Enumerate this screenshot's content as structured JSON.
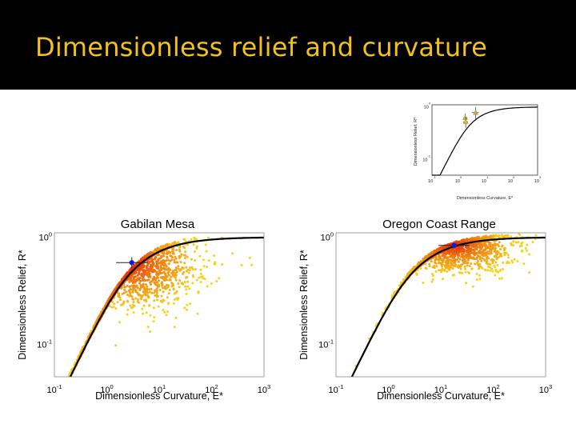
{
  "slide": {
    "title": "Dimensionless relief and curvature"
  },
  "chart_data": [
    {
      "type": "scatter",
      "title": "Gabilan Mesa",
      "xlabel": "Dimensionless Curvature, E*",
      "ylabel": "Dimensionless Relief, R*",
      "x_scale": "log",
      "y_scale": "log",
      "xlim": [
        0.1,
        1000
      ],
      "ylim": [
        0.05,
        1.1
      ],
      "x_ticks": [
        0.1,
        1,
        10,
        100,
        1000
      ],
      "y_ticks": [
        0.1,
        1
      ],
      "curve": "R* = (1/E*)(sqrt(1+E*^2) - ln((1+sqrt(1+E*^2))/2) - 1)",
      "cloud": {
        "center_E": 3,
        "center_R": 0.58,
        "spread_logE": 0.6,
        "spread_logR": 0.2,
        "n_points": 1800
      },
      "mean_point": {
        "E": 3.0,
        "R": 0.58,
        "xerr_log": 0.3,
        "yerr_log": 0.05
      },
      "colors": {
        "curve": "#000000",
        "mean": "#1020d0",
        "cloud_dense": "#e52a08",
        "cloud_mid": "#f08a12",
        "cloud_sparse": "#f5d21e"
      }
    },
    {
      "type": "scatter",
      "title": "Oregon Coast Range",
      "xlabel": "Dimensionless Curvature, E*",
      "ylabel": "Dimensionless Relief, R*",
      "x_scale": "log",
      "y_scale": "log",
      "xlim": [
        0.1,
        1000
      ],
      "ylim": [
        0.05,
        1.1
      ],
      "x_ticks": [
        0.1,
        1,
        10,
        100,
        1000
      ],
      "y_ticks": [
        0.1,
        1
      ],
      "curve": "R* = (1/E*)(sqrt(1+E*^2) - ln((1+sqrt(1+E*^2))/2) - 1)",
      "cloud": {
        "center_E": 18,
        "center_R": 0.84,
        "spread_logE": 0.55,
        "spread_logR": 0.12,
        "n_points": 1500
      },
      "mean_point": {
        "E": 18,
        "R": 0.84,
        "xerr_log": 0.3,
        "yerr_log": 0.02
      },
      "colors": {
        "curve": "#000000",
        "mean": "#1020d0",
        "cloud_dense": "#e52a08",
        "cloud_mid": "#f08a12",
        "cloud_sparse": "#f5d21e"
      }
    },
    {
      "type": "scatter",
      "title": "",
      "xlabel": "Dimensionless Curvature, E*",
      "ylabel": "Dimensionless Relief, R*",
      "x_scale": "log",
      "y_scale": "log",
      "xlim": [
        0.1,
        1000
      ],
      "ylim": [
        0.05,
        1.1
      ],
      "x_ticks": [
        0.1,
        1,
        10,
        100,
        1000
      ],
      "y_ticks": [
        0.1,
        1
      ],
      "points": [
        {
          "E": 1.8,
          "R": 0.62,
          "xerr": [
            1.5,
            2.2
          ],
          "yerr": [
            0.5,
            0.75
          ],
          "color": "#d8c020"
        },
        {
          "E": 1.9,
          "R": 0.52,
          "xerr": [
            1.5,
            2.3
          ],
          "yerr": [
            0.4,
            0.65
          ],
          "color": "#d8c020"
        },
        {
          "E": 4.5,
          "R": 0.78,
          "xerr": [
            3.2,
            6.0
          ],
          "yerr": [
            0.55,
            1.0
          ],
          "color": "#c8b020"
        }
      ]
    }
  ]
}
